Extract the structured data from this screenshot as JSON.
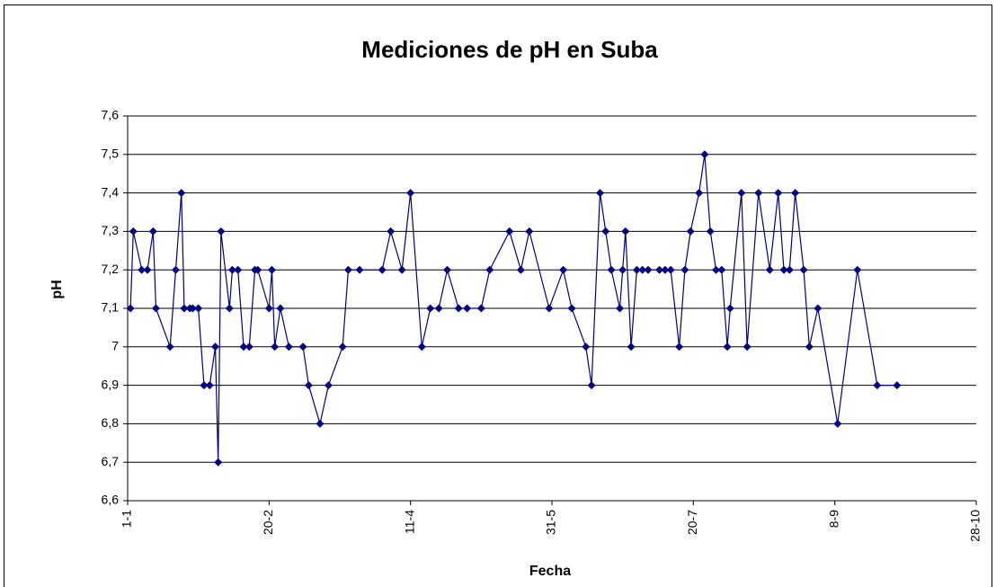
{
  "chart_data": {
    "type": "line",
    "title": "Mediciones de pH en Suba",
    "xlabel": "Fecha",
    "ylabel": "pH",
    "x": [
      1,
      2,
      5,
      7,
      9,
      10,
      15,
      17,
      19,
      20,
      22,
      23,
      25,
      27,
      29,
      31,
      32,
      33,
      36,
      37,
      39,
      41,
      43,
      45,
      46,
      50,
      51,
      52,
      54,
      57,
      62,
      64,
      68,
      71,
      76,
      78,
      82,
      90,
      93,
      97,
      100,
      104,
      107,
      110,
      113,
      117,
      120,
      125,
      128,
      135,
      139,
      142,
      149,
      154,
      157,
      162,
      164,
      167,
      169,
      171,
      174,
      175,
      176,
      178,
      180,
      182,
      184,
      188,
      190,
      192,
      195,
      197,
      199,
      202,
      204,
      206,
      208,
      210,
      212,
      213,
      217,
      219,
      223,
      227,
      230,
      232,
      234,
      236,
      239,
      241,
      244,
      251,
      258,
      265,
      272
    ],
    "series": [
      {
        "name": "pH",
        "color": "#000080",
        "values": [
          7.1,
          7.3,
          7.2,
          7.2,
          7.3,
          7.1,
          7.0,
          7.2,
          7.4,
          7.1,
          7.1,
          7.1,
          7.1,
          6.9,
          6.9,
          7.0,
          6.7,
          7.3,
          7.1,
          7.2,
          7.2,
          7.0,
          7.0,
          7.2,
          7.2,
          7.1,
          7.2,
          7.0,
          7.1,
          7.0,
          7.0,
          6.9,
          6.8,
          6.9,
          7.0,
          7.2,
          7.2,
          7.2,
          7.3,
          7.2,
          7.4,
          7.0,
          7.1,
          7.1,
          7.2,
          7.1,
          7.1,
          7.1,
          7.2,
          7.3,
          7.2,
          7.3,
          7.1,
          7.2,
          7.1,
          7.0,
          6.9,
          7.4,
          7.3,
          7.2,
          7.1,
          7.2,
          7.3,
          7.0,
          7.2,
          7.2,
          7.2,
          7.2,
          7.2,
          7.2,
          7.0,
          7.2,
          7.3,
          7.4,
          7.5,
          7.3,
          7.2,
          7.2,
          7.0,
          7.1,
          7.4,
          7.0,
          7.4,
          7.2,
          7.4,
          7.2,
          7.2,
          7.4,
          7.2,
          7.0,
          7.1,
          6.8,
          7.2,
          6.9,
          6.9
        ]
      }
    ],
    "xlim": [
      0,
      300
    ],
    "xticks": [
      {
        "value": 0,
        "label": "1-1"
      },
      {
        "value": 50,
        "label": "20-2"
      },
      {
        "value": 100,
        "label": "11-4"
      },
      {
        "value": 150,
        "label": "31-5"
      },
      {
        "value": 200,
        "label": "20-7"
      },
      {
        "value": 250,
        "label": "8-9"
      },
      {
        "value": 300,
        "label": "28-10"
      }
    ],
    "ylim": [
      6.6,
      7.6
    ],
    "yticks": [
      {
        "value": 6.6,
        "label": "6,6"
      },
      {
        "value": 6.7,
        "label": "6,7"
      },
      {
        "value": 6.8,
        "label": "6,8"
      },
      {
        "value": 6.9,
        "label": "6,9"
      },
      7,
      {
        "value": 7.1,
        "label": "7,1"
      },
      {
        "value": 7.2,
        "label": "7,2"
      },
      {
        "value": 7.3,
        "label": "7,3"
      },
      {
        "value": 7.4,
        "label": "7,4"
      },
      {
        "value": 7.5,
        "label": "7,5"
      },
      {
        "value": 7.6,
        "label": "7,6"
      }
    ],
    "grid": true
  }
}
